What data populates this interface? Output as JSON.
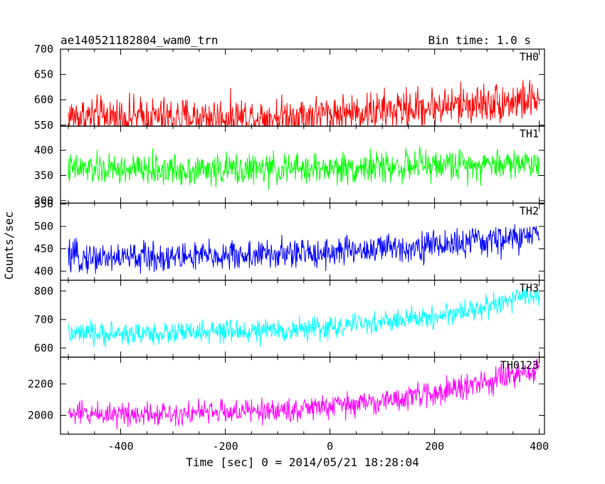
{
  "header": {
    "title": "ae140521182804_wam0_trn",
    "bin_time": "Bin time: 1.0 s"
  },
  "chart_data": {
    "type": "line",
    "xlabel": "Time [sec] 0 = 2014/05/21 18:28:04",
    "ylabel": "Counts/sec",
    "xlim": [
      -515,
      410
    ],
    "x_ticks": [
      -400,
      -200,
      0,
      200,
      400
    ],
    "x_range": [
      -500,
      400
    ],
    "bin_time": 1.0,
    "panels": [
      {
        "name": "TH0",
        "color": "#ff0000",
        "ylim": [
          548,
          700
        ],
        "y_ticks": [
          550,
          600,
          650,
          700
        ],
        "trend_x": [
          -500,
          -300,
          -100,
          0,
          100,
          200,
          300,
          400
        ],
        "trend_y": [
          568,
          565,
          567,
          572,
          578,
          586,
          594,
          600
        ],
        "noise": 28
      },
      {
        "name": "TH1",
        "color": "#00ff00",
        "ylim": [
          295,
          448
        ],
        "y_ticks": [
          300,
          350,
          400
        ],
        "trend_x": [
          -500,
          -300,
          -100,
          0,
          100,
          200,
          300,
          400
        ],
        "trend_y": [
          362,
          361,
          362,
          364,
          367,
          370,
          373,
          375
        ],
        "noise": 22
      },
      {
        "name": "TH2",
        "color": "#0000ff",
        "ylim": [
          380,
          552
        ],
        "y_ticks": [
          400,
          450,
          500,
          550
        ],
        "trend_x": [
          -500,
          -300,
          -100,
          0,
          100,
          200,
          300,
          400
        ],
        "trend_y": [
          430,
          432,
          437,
          443,
          450,
          458,
          467,
          480
        ],
        "noise": 24
      },
      {
        "name": "TH3",
        "color": "#00ffff",
        "ylim": [
          568,
          838
        ],
        "y_ticks": [
          600,
          700,
          800
        ],
        "trend_x": [
          -500,
          -300,
          -100,
          0,
          100,
          200,
          300,
          400
        ],
        "trend_y": [
          648,
          652,
          660,
          672,
          690,
          710,
          745,
          790
        ],
        "noise": 28
      },
      {
        "name": "TH0123",
        "color": "#ff00ff",
        "ylim": [
          1880,
          2370
        ],
        "y_ticks": [
          2000,
          2200
        ],
        "trend_x": [
          -500,
          -300,
          -100,
          0,
          100,
          200,
          300,
          400
        ],
        "trend_y": [
          2010,
          2015,
          2030,
          2055,
          2090,
          2140,
          2210,
          2290
        ],
        "noise": 55
      }
    ]
  }
}
